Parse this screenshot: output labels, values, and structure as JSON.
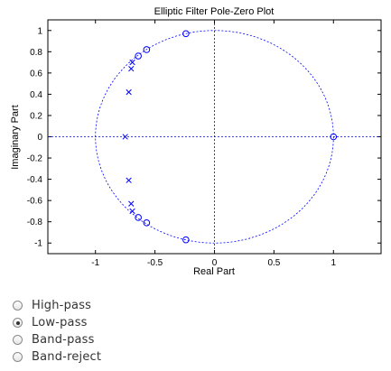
{
  "chart_data": {
    "type": "scatter",
    "title": "Elliptic Filter Pole-Zero Plot",
    "xlabel": "Real Part",
    "ylabel": "Imaginary Part",
    "xlim": [
      -1.4,
      1.4
    ],
    "ylim": [
      -1.1,
      1.1
    ],
    "xticks": [
      -1,
      -0.5,
      0,
      0.5,
      1
    ],
    "xtick_labels": [
      "-1",
      "-0.5",
      "0",
      "0.5",
      "1"
    ],
    "yticks": [
      1,
      0.8,
      0.6,
      0.4,
      0.2,
      0,
      -0.2,
      -0.4,
      -0.6,
      -0.8,
      -1
    ],
    "ytick_labels": [
      "1",
      "0.8",
      "0.6",
      "0.4",
      "0.2",
      "0",
      "-0.2",
      "-0.4",
      "-0.6",
      "-0.8",
      "-1"
    ],
    "grid": false,
    "unit_circle": true,
    "series": [
      {
        "marker": "o",
        "x": [
          -0.24,
          -0.57,
          -0.64,
          -0.57,
          -0.64,
          -0.24,
          1.0
        ],
        "y": [
          0.97,
          0.82,
          0.76,
          -0.81,
          -0.76,
          -0.97,
          0.0
        ]
      },
      {
        "marker": "x",
        "x": [
          -0.69,
          -0.7,
          -0.72,
          -0.75,
          -0.72,
          -0.7,
          -0.69
        ],
        "y": [
          0.7,
          0.64,
          0.42,
          0.0,
          -0.41,
          -0.63,
          -0.7
        ]
      }
    ],
    "color": "#0000ff"
  },
  "filter_options": {
    "items": [
      {
        "label": "High-pass",
        "checked": false
      },
      {
        "label": "Low-pass",
        "checked": true
      },
      {
        "label": "Band-pass",
        "checked": false
      },
      {
        "label": "Band-reject",
        "checked": false
      }
    ]
  }
}
